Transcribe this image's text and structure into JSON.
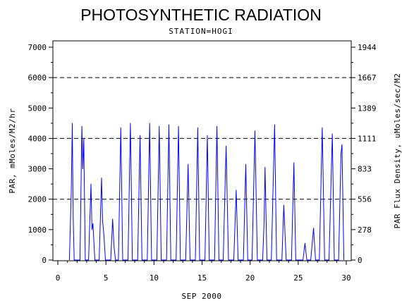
{
  "chart_data": {
    "type": "line",
    "title": "PHOTOSYNTHETIC RADIATION",
    "subtitle": "STATION=HOGI",
    "xlabel": "SEP 2000",
    "ylabel": "PAR, mMoles/M2/hr",
    "y2label": "PAR Flux Density, uMoles/sec/M2",
    "xlim": [
      0,
      30
    ],
    "ylim": [
      0,
      7000
    ],
    "y2lim": [
      0,
      1944
    ],
    "x_ticks": [
      "0",
      "5",
      "10",
      "15",
      "20",
      "25",
      "30"
    ],
    "y_ticks": [
      "0",
      "1000",
      "2000",
      "3000",
      "4000",
      "5000",
      "6000",
      "7000"
    ],
    "y2_ticks": [
      "0",
      "278",
      "556",
      "833",
      "1111",
      "1389",
      "1667",
      "1944"
    ],
    "reference_lines": [
      2000,
      4000,
      6000
    ],
    "line_color": "#0000ff",
    "grid": false,
    "series": [
      {
        "values": [
          [
            1.2,
            0
          ],
          [
            1.4,
            2300
          ],
          [
            1.5,
            4500
          ],
          [
            1.6,
            1400
          ],
          [
            1.7,
            0
          ],
          [
            2.3,
            0
          ],
          [
            2.5,
            4400
          ],
          [
            2.6,
            3000
          ],
          [
            2.7,
            4000
          ],
          [
            2.85,
            0
          ],
          [
            3.2,
            0
          ],
          [
            3.45,
            2500
          ],
          [
            3.55,
            1000
          ],
          [
            3.65,
            1200
          ],
          [
            3.85,
            0
          ],
          [
            4.3,
            0
          ],
          [
            4.55,
            2700
          ],
          [
            4.65,
            1300
          ],
          [
            4.8,
            800
          ],
          [
            4.95,
            0
          ],
          [
            5.5,
            0
          ],
          [
            5.7,
            1350
          ],
          [
            5.85,
            400
          ],
          [
            6.0,
            0
          ],
          [
            6.3,
            0
          ],
          [
            6.55,
            4350
          ],
          [
            6.75,
            0
          ],
          [
            7.3,
            0
          ],
          [
            7.55,
            4500
          ],
          [
            7.75,
            0
          ],
          [
            8.3,
            0
          ],
          [
            8.55,
            4100
          ],
          [
            8.75,
            0
          ],
          [
            9.3,
            0
          ],
          [
            9.55,
            4500
          ],
          [
            9.75,
            0
          ],
          [
            10.3,
            0
          ],
          [
            10.55,
            4400
          ],
          [
            10.75,
            0
          ],
          [
            11.3,
            0
          ],
          [
            11.55,
            4450
          ],
          [
            11.75,
            0
          ],
          [
            12.3,
            0
          ],
          [
            12.55,
            4400
          ],
          [
            12.75,
            0
          ],
          [
            13.3,
            0
          ],
          [
            13.55,
            3150
          ],
          [
            13.75,
            0
          ],
          [
            14.3,
            0
          ],
          [
            14.55,
            4350
          ],
          [
            14.75,
            0
          ],
          [
            15.3,
            0
          ],
          [
            15.55,
            4100
          ],
          [
            15.75,
            0
          ],
          [
            16.3,
            0
          ],
          [
            16.55,
            4400
          ],
          [
            16.75,
            0
          ],
          [
            17.2,
            0
          ],
          [
            17.5,
            3750
          ],
          [
            17.75,
            0
          ],
          [
            18.3,
            0
          ],
          [
            18.55,
            2300
          ],
          [
            18.75,
            0
          ],
          [
            19.3,
            0
          ],
          [
            19.55,
            3150
          ],
          [
            19.75,
            0
          ],
          [
            20.2,
            0
          ],
          [
            20.5,
            4250
          ],
          [
            20.75,
            0
          ],
          [
            21.3,
            0
          ],
          [
            21.45,
            1200
          ],
          [
            21.55,
            3050
          ],
          [
            21.75,
            0
          ],
          [
            22.2,
            0
          ],
          [
            22.55,
            4450
          ],
          [
            22.75,
            0
          ],
          [
            23.3,
            0
          ],
          [
            23.5,
            1800
          ],
          [
            23.75,
            0
          ],
          [
            24.3,
            0
          ],
          [
            24.55,
            3200
          ],
          [
            24.75,
            0
          ],
          [
            25.5,
            0
          ],
          [
            25.7,
            550
          ],
          [
            25.9,
            0
          ],
          [
            26.3,
            0
          ],
          [
            26.6,
            1050
          ],
          [
            26.8,
            0
          ],
          [
            27.2,
            0
          ],
          [
            27.5,
            4350
          ],
          [
            27.75,
            0
          ],
          [
            28.2,
            0
          ],
          [
            28.55,
            4150
          ],
          [
            28.75,
            0
          ],
          [
            29.2,
            0
          ],
          [
            29.45,
            3500
          ],
          [
            29.55,
            3800
          ],
          [
            29.75,
            0
          ]
        ]
      }
    ]
  }
}
